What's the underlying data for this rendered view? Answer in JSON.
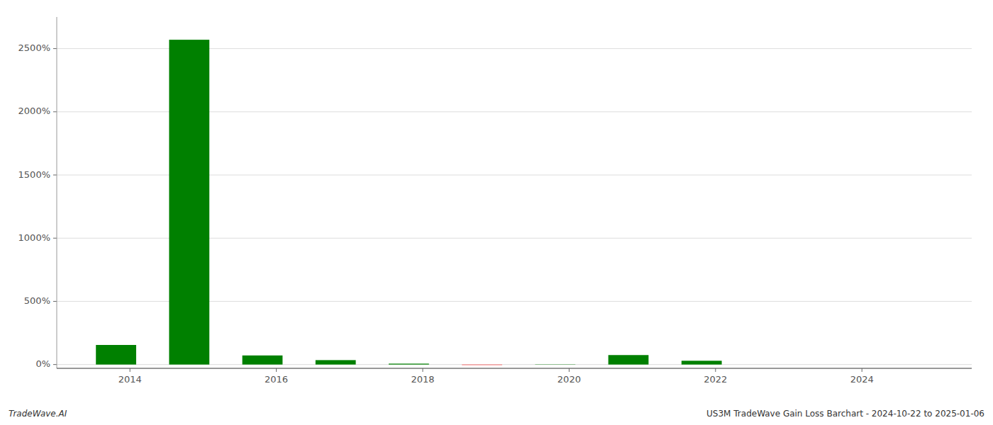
{
  "chart_data": {
    "type": "bar",
    "x": [
      2013.81,
      2014.81,
      2015.81,
      2016.81,
      2017.81,
      2018.81,
      2019.81,
      2020.81,
      2021.81,
      2022.81,
      2023.81
    ],
    "values": [
      1.55,
      25.7,
      0.72,
      0.35,
      0.07,
      -0.04,
      0.02,
      0.75,
      0.3,
      0.0,
      0.0
    ],
    "colors": [
      "#008000",
      "#008000",
      "#008000",
      "#008000",
      "#008000",
      "#ff4444",
      "#008000",
      "#008000",
      "#008000",
      "#008000",
      "#008000"
    ],
    "xlim": [
      2013.0,
      2025.5
    ],
    "xticks": [
      2014,
      2016,
      2018,
      2020,
      2022,
      2024
    ],
    "ylim": [
      -0.3,
      27.5
    ],
    "yticks": [
      {
        "value": 0,
        "label": "0%"
      },
      {
        "value": 5,
        "label": "500%"
      },
      {
        "value": 10,
        "label": "1000%"
      },
      {
        "value": 15,
        "label": "1500%"
      },
      {
        "value": 20,
        "label": "2000%"
      },
      {
        "value": 25,
        "label": "2500%"
      }
    ],
    "grid": true,
    "annotations": [
      "TradeWave.AI",
      "US3M TradeWave Gain Loss Barchart - 2024-10-22 to 2025-01-06"
    ]
  }
}
